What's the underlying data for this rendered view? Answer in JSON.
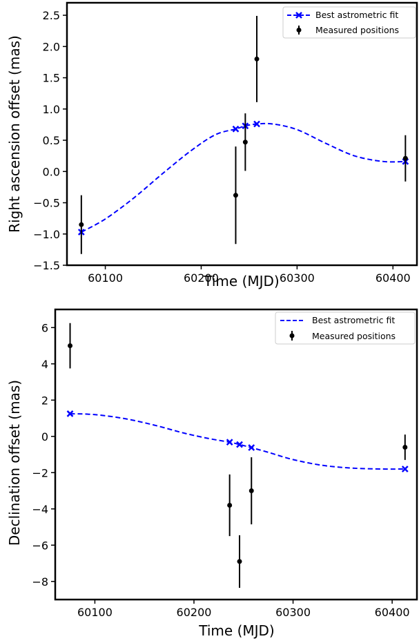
{
  "colors": {
    "fit": "#0000ff",
    "measured": "#000000"
  },
  "chart_data": [
    {
      "type": "scatter",
      "xlabel": "Time (MJD)",
      "ylabel": "Right ascension offset (mas)",
      "xlim": [
        60060,
        60425
      ],
      "ylim": [
        -1.5,
        2.7
      ],
      "xticks": [
        60100,
        60200,
        60300,
        60400
      ],
      "yticks": [
        -1.5,
        -1.0,
        -0.5,
        0.0,
        0.5,
        1.0,
        1.5,
        2.0,
        2.5
      ],
      "ytick_labels": [
        "−1.5",
        "−1.0",
        "−0.5",
        "0.0",
        "0.5",
        "1.0",
        "1.5",
        "2.0",
        "2.5"
      ],
      "grid": false,
      "legend_position": "top-right",
      "series": [
        {
          "name": "Best astrometric fit",
          "style": "dashed-line-x-markers",
          "curve": {
            "x": [
              60075,
              60100,
              60130,
              60160,
              60190,
              60215,
              60236,
              60246,
              60258,
              60275,
              60300,
              60330,
              60360,
              60390,
              60413
            ],
            "y": [
              -0.97,
              -0.76,
              -0.42,
              -0.03,
              0.34,
              0.59,
              0.68,
              0.73,
              0.76,
              0.76,
              0.67,
              0.45,
              0.25,
              0.16,
              0.16
            ]
          },
          "markers": {
            "x": [
              60075,
              60236,
              60246,
              60258,
              60413
            ],
            "y": [
              -0.97,
              0.68,
              0.73,
              0.76,
              0.16
            ]
          }
        },
        {
          "name": "Measured positions",
          "style": "errorbar-points",
          "x": [
            60075,
            60236,
            60246,
            60258,
            60413
          ],
          "y": [
            -0.85,
            -0.38,
            0.47,
            1.8,
            0.21
          ],
          "yerr": [
            0.47,
            0.78,
            0.46,
            0.69,
            0.37
          ]
        }
      ]
    },
    {
      "type": "scatter",
      "xlabel": "Time (MJD)",
      "ylabel": "Declination offset (mas)",
      "xlim": [
        60060,
        60425
      ],
      "ylim": [
        -9.0,
        7.0
      ],
      "xticks": [
        60100,
        60200,
        60300,
        60400
      ],
      "yticks": [
        -8,
        -6,
        -4,
        -2,
        0,
        2,
        4,
        6
      ],
      "ytick_labels": [
        "−8",
        "−6",
        "−4",
        "−2",
        "0",
        "2",
        "4",
        "6"
      ],
      "grid": false,
      "legend_position": "top-right",
      "series": [
        {
          "name": "Best astrometric fit",
          "style": "dashed-line-x-markers",
          "curve": {
            "x": [
              60075,
              60100,
              60130,
              60160,
              60190,
              60215,
              60236,
              60246,
              60258,
              60275,
              60300,
              60330,
              60360,
              60390,
              60413
            ],
            "y": [
              1.25,
              1.2,
              0.98,
              0.62,
              0.18,
              -0.12,
              -0.32,
              -0.45,
              -0.62,
              -0.88,
              -1.28,
              -1.6,
              -1.75,
              -1.8,
              -1.8
            ]
          },
          "markers": {
            "x": [
              60075,
              60236,
              60246,
              60258,
              60413
            ],
            "y": [
              1.25,
              -0.32,
              -0.45,
              -0.62,
              -1.8
            ]
          }
        },
        {
          "name": "Measured positions",
          "style": "errorbar-points",
          "x": [
            60075,
            60236,
            60246,
            60258,
            60413
          ],
          "y": [
            5.0,
            -3.8,
            -6.9,
            -3.0,
            -0.6
          ],
          "yerr": [
            1.25,
            1.7,
            1.45,
            1.85,
            0.7
          ]
        }
      ]
    }
  ]
}
